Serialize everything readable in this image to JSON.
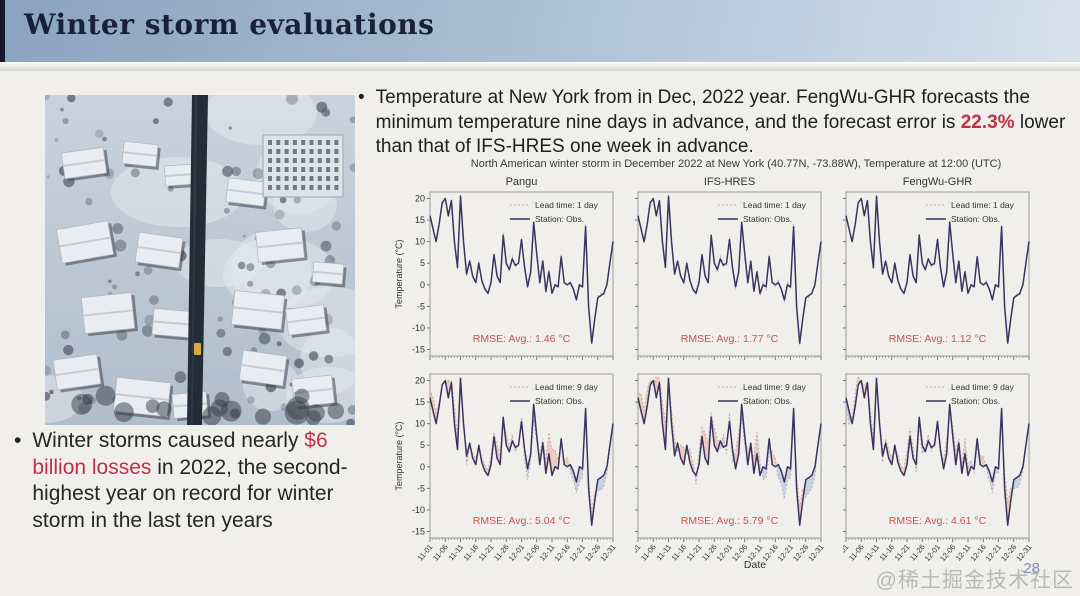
{
  "slide": {
    "title": "Winter storm evaluations",
    "page_number": "28",
    "watermark": "@稀土掘金技术社区"
  },
  "bullets": {
    "top": {
      "marker": "•",
      "pre": "Temperature at New York from in Dec, 2022 year. FengWu-GHR forecasts the minimum temperature nine days in advance, and the forecast error is ",
      "highlight": "22.3%",
      "post": " lower than that of IFS-HRES one week in advance."
    },
    "bottom": {
      "marker": "•",
      "pre": "Winter storms caused nearly ",
      "highlight": "$6 billion losses",
      "post": " in 2022, the second-highest year on record for winter storm in the last ten years"
    }
  },
  "figure": {
    "suptitle": "North American winter storm in December 2022 at New York (40.77N, -73.88W), Temperature at 12:00 (UTC)",
    "ylabel": "Temperature (°C)",
    "xlabel": "Date"
  },
  "colors": {
    "accent_red": "#bf3147",
    "obs_line": "#3b3461",
    "forecast_line": "#b7b0a4",
    "fill_above": "#e7a78c",
    "fill_below": "#a2b1dd",
    "rmse_color": "#c4534f",
    "header_from": "#8aa3bf",
    "header_to": "#d6e1ec"
  },
  "chart_data": {
    "type": "line",
    "x_tick_labels": [
      "11-01",
      "11-06",
      "11-11",
      "11-16",
      "11-21",
      "11-26",
      "12-01",
      "12-06",
      "12-11",
      "12-16",
      "12-21",
      "12-26",
      "12-31"
    ],
    "y_ticks": [
      20,
      15,
      10,
      5,
      0,
      -5,
      -10,
      -15
    ],
    "ylim": [
      -16.5,
      21.5
    ],
    "observation": [
      16,
      13,
      10,
      14,
      19,
      20,
      16,
      19.5,
      10,
      4,
      20.5,
      10,
      2.5,
      5.5,
      2,
      0.5,
      5,
      1,
      -1,
      -2,
      0.5,
      7,
      2,
      0.5,
      11.5,
      5,
      3.5,
      6,
      4.5,
      5,
      10.5,
      4,
      -0.5,
      3,
      14.5,
      7,
      0.5,
      5.5,
      -1.5,
      3,
      -2,
      0,
      -0.5,
      6.5,
      0.5,
      0,
      0.5,
      -1,
      -3.5,
      0,
      -0.5,
      13.5,
      -5,
      -13.5,
      -8,
      -3,
      -2.5,
      -2,
      0,
      5,
      10
    ],
    "panels": [
      {
        "title": "Pangu",
        "legend_lead": "Lead time: 1 day",
        "legend_obs": "Station: Obs.",
        "rmse": "RMSE: Avg.: 1.46 °C",
        "forecast": [
          16.5,
          12.6,
          10.4,
          14.5,
          18.6,
          20.3,
          15.6,
          19.9,
          10.5,
          3.6,
          20.9,
          10.5,
          2.1,
          5.8,
          1.6,
          0.9,
          5.5,
          0.6,
          -0.6,
          -1.5,
          0.1,
          7.3,
          1.6,
          0.9,
          12,
          4.6,
          3.9,
          6.5,
          4.1,
          5.3,
          10.1,
          4.4,
          0,
          2.6,
          14.9,
          7.5,
          0.1,
          5.8,
          -1.9,
          3.4,
          -1.5,
          -0.4,
          -0.1,
          7,
          0.1,
          0.3,
          0.1,
          -0.6,
          -3,
          -0.4,
          -0.1,
          14,
          -5.4,
          -13.2,
          -8.4,
          -2.6,
          -2,
          -2.4,
          0.4,
          5.5,
          9.6
        ]
      },
      {
        "title": "IFS-HRES",
        "legend_lead": "Lead time: 1 day",
        "legend_obs": "Station: Obs.",
        "rmse": "RMSE: Avg.: 1.77 °C",
        "forecast": [
          15.4,
          13.5,
          9.5,
          14.6,
          19.5,
          19.4,
          16.5,
          19,
          9.4,
          4.5,
          20,
          10.6,
          3,
          4.9,
          2.5,
          0,
          4.4,
          1.5,
          -1.5,
          -1.4,
          1,
          6.4,
          2.5,
          0,
          10.9,
          5.5,
          3,
          6.6,
          5,
          4.4,
          11,
          3.5,
          -1.1,
          3.5,
          14,
          7.6,
          1,
          4.9,
          -1,
          2.5,
          -2.6,
          0.5,
          -1,
          7.1,
          1,
          -0.6,
          1,
          -1.5,
          -4.1,
          0.5,
          -1,
          14.1,
          -4.5,
          -14.1,
          -7.5,
          -3.5,
          -3.1,
          -1.5,
          -0.5,
          5.6,
          10.5
        ]
      },
      {
        "title": "FengWu-GHR",
        "legend_lead": "Lead time: 1 day",
        "legend_obs": "Station: Obs.",
        "rmse": "RMSE: Avg.: 1.12 °C",
        "forecast": [
          16.3,
          12.7,
          10.3,
          13.7,
          19.3,
          19.7,
          16.3,
          19.2,
          10.3,
          3.7,
          20.8,
          9.7,
          2.8,
          5.2,
          2.3,
          0.2,
          5.3,
          0.7,
          -0.7,
          -2.3,
          0.8,
          6.7,
          2.3,
          0.2,
          11.8,
          4.7,
          3.8,
          5.7,
          4.8,
          4.7,
          10.8,
          3.7,
          -0.2,
          2.7,
          14.8,
          6.7,
          0.8,
          5.2,
          -1.2,
          2.7,
          -1.7,
          -0.3,
          -0.2,
          6.2,
          0.8,
          -0.3,
          0.8,
          -1.3,
          -3.2,
          -0.3,
          -0.2,
          13.2,
          -4.7,
          -13.8,
          -7.7,
          -3.3,
          -2.2,
          -2.3,
          0.3,
          4.7,
          10.3
        ]
      },
      {
        "title": "Pangu",
        "legend_lead": "Lead time: 9 day",
        "legend_obs": "Station: Obs.",
        "rmse": "RMSE: Avg.: 5.04 °C",
        "forecast": [
          18,
          16,
          12.5,
          15,
          19,
          19.5,
          20,
          20,
          14,
          7,
          19.5,
          11.5,
          0.5,
          4.5,
          3,
          2,
          4,
          2,
          0.5,
          -1,
          2.5,
          8,
          5,
          2.5,
          10.5,
          7.5,
          4.5,
          7.5,
          3.5,
          5,
          11.5,
          2,
          -3,
          2,
          11,
          6,
          2.5,
          6.5,
          1.5,
          8,
          4,
          4,
          1.5,
          5.5,
          1.5,
          2,
          -1,
          -3,
          -6,
          -3.5,
          -2.5,
          10.5,
          -3,
          -10.5,
          -6,
          -5.5,
          -5.5,
          -4.5,
          -1.5,
          4,
          9.5
        ]
      },
      {
        "title": "IFS-HRES",
        "legend_lead": "Lead time: 9 day",
        "legend_obs": "Station: Obs.",
        "rmse": "RMSE: Avg.: 5.79 °C",
        "forecast": [
          17,
          17,
          13,
          18,
          20,
          19,
          21,
          20.5,
          15,
          10,
          19,
          13,
          6.5,
          3.5,
          5,
          4.5,
          3,
          4,
          1,
          -4,
          3.5,
          9,
          8,
          5.5,
          12.5,
          9,
          6.5,
          4,
          7.5,
          3,
          12.5,
          1,
          3.5,
          8,
          11.5,
          5,
          4.5,
          3.5,
          2.5,
          8,
          1,
          -3,
          -2.5,
          3.5,
          3.5,
          2,
          -2.5,
          -4,
          -7.5,
          -3,
          -2.5,
          9.5,
          -2,
          -9.5,
          -5,
          -7,
          -6,
          -5,
          -2,
          4,
          10
        ]
      },
      {
        "title": "FengWu-GHR",
        "legend_lead": "Lead time: 9 day",
        "legend_obs": "Station: Obs.",
        "rmse": "RMSE: Avg.: 4.61 °C",
        "forecast": [
          14,
          10,
          11,
          17,
          21,
          19,
          19,
          19.5,
          13,
          6,
          19.5,
          12,
          1,
          6.5,
          4,
          2,
          4,
          3,
          0,
          -0.5,
          3.5,
          9,
          4.5,
          -1.5,
          10,
          3,
          4.5,
          7.5,
          3.5,
          6,
          9.5,
          2.5,
          1.5,
          6,
          12.5,
          9.5,
          3.5,
          6.5,
          0.5,
          6.5,
          0,
          1.5,
          -1.5,
          4.5,
          2.5,
          2.5,
          -0.5,
          -3,
          -6,
          -1.5,
          -1.5,
          10.5,
          -1,
          -8.5,
          -5,
          -5,
          -5,
          -4,
          -1,
          4.5,
          10
        ]
      }
    ]
  }
}
